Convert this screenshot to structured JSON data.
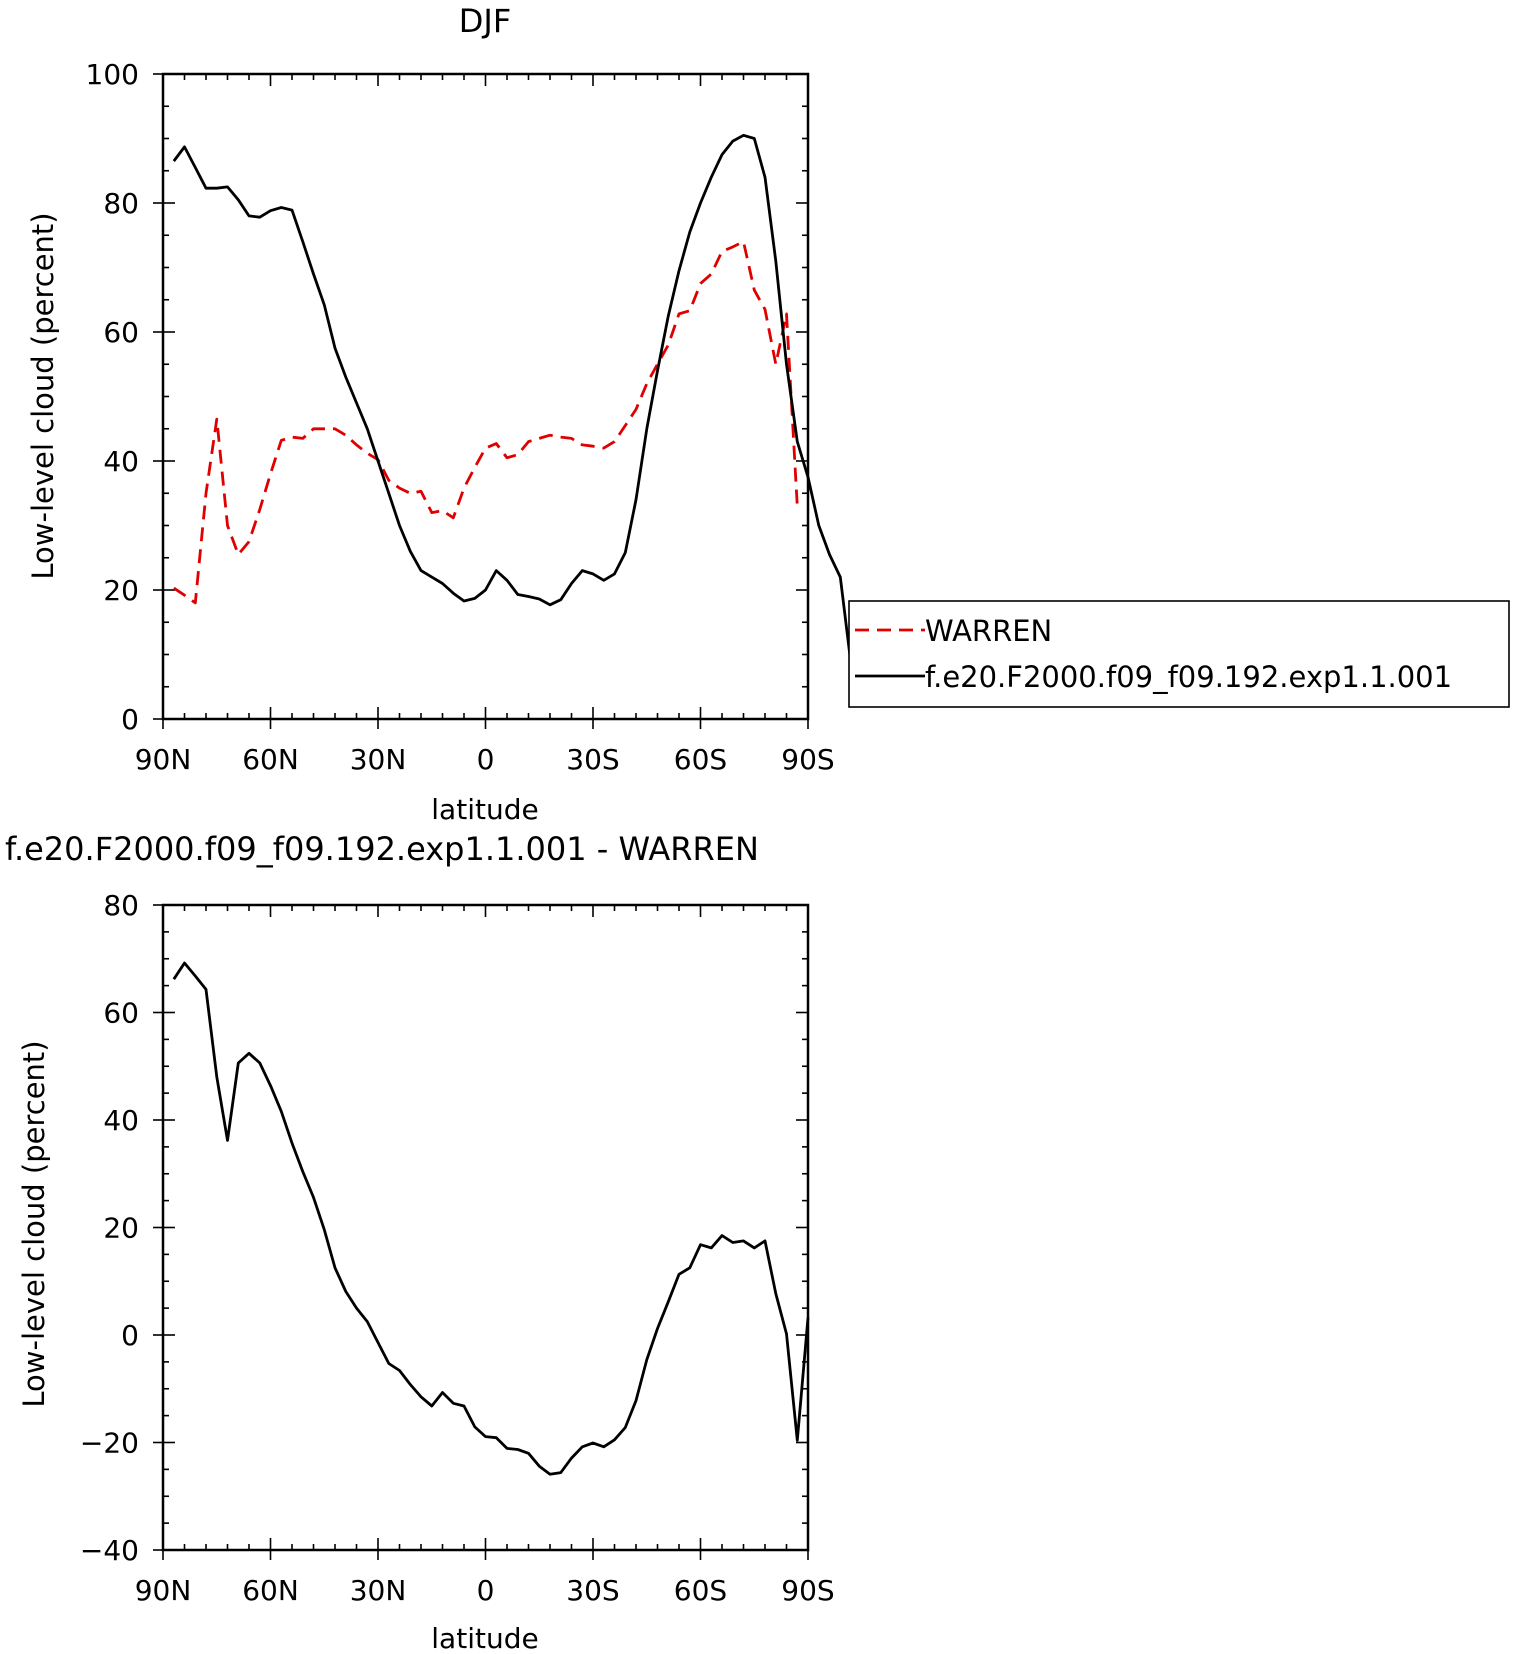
{
  "chart_data": [
    {
      "type": "line",
      "title": "DJF",
      "xlabel": "latitude",
      "ylabel": "Low-level cloud (percent)",
      "xlim": [
        90,
        -90
      ],
      "ylim": [
        0,
        100
      ],
      "x_ticks": [
        90,
        60,
        30,
        0,
        -30,
        -60,
        -90
      ],
      "x_tick_labels": [
        "90N",
        "60N",
        "30N",
        "0",
        "30S",
        "60S",
        "90S"
      ],
      "y_ticks": [
        0,
        20,
        40,
        60,
        80,
        100
      ],
      "y_tick_labels": [
        "0",
        "20",
        "40",
        "60",
        "80",
        "100"
      ],
      "legend_position": "right",
      "series": [
        {
          "name": "WARREN",
          "color": "#e00000",
          "style": "dashed",
          "points": [
            [
              87,
              20.3
            ],
            [
              84,
              19.2
            ],
            [
              81,
              18
            ],
            [
              78,
              35
            ],
            [
              75,
              46.5
            ],
            [
              72,
              30
            ],
            [
              69,
              25.5
            ],
            [
              66,
              27.5
            ],
            [
              63,
              32.5
            ],
            [
              60,
              38
            ],
            [
              57,
              43.2
            ],
            [
              54,
              43.7
            ],
            [
              51,
              43.5
            ],
            [
              48,
              45
            ],
            [
              45,
              45
            ],
            [
              42,
              45
            ],
            [
              39,
              44
            ],
            [
              36,
              42.5
            ],
            [
              33,
              41.2
            ],
            [
              30,
              40.2
            ],
            [
              27,
              37
            ],
            [
              24,
              35.8
            ],
            [
              21,
              35
            ],
            [
              18,
              35.3
            ],
            [
              15,
              32
            ],
            [
              12,
              32.3
            ],
            [
              9,
              31.2
            ],
            [
              6,
              35.8
            ],
            [
              3,
              39
            ],
            [
              0,
              42
            ],
            [
              -3,
              42.7
            ],
            [
              -6,
              40.5
            ],
            [
              -9,
              41
            ],
            [
              -12,
              43
            ],
            [
              -15,
              43.5
            ],
            [
              -18,
              44
            ],
            [
              -21,
              43.7
            ],
            [
              -24,
              43.5
            ],
            [
              -27,
              42.5
            ],
            [
              -30,
              42.3
            ],
            [
              -33,
              42
            ],
            [
              -36,
              43
            ],
            [
              -39,
              45.5
            ],
            [
              -42,
              48
            ],
            [
              -45,
              52
            ],
            [
              -48,
              55
            ],
            [
              -51,
              58
            ],
            [
              -54,
              62.8
            ],
            [
              -57,
              63.3
            ],
            [
              -60,
              67.5
            ],
            [
              -63,
              69
            ],
            [
              -66,
              72.5
            ],
            [
              -69,
              73.2
            ],
            [
              -72,
              74
            ],
            [
              -75,
              66.5
            ],
            [
              -78,
              63.5
            ],
            [
              -81,
              55
            ],
            [
              -84,
              62.8
            ],
            [
              -87,
              33
            ]
          ]
        },
        {
          "name": "f.e20.F2000.f09_f09.192.exp1.1.001",
          "color": "#000000",
          "style": "solid",
          "points": [
            [
              87,
              86.5
            ],
            [
              84,
              88.7
            ],
            [
              81,
              85.5
            ],
            [
              78,
              82.3
            ],
            [
              75,
              82.3
            ],
            [
              72,
              82.5
            ],
            [
              69,
              80.5
            ],
            [
              66,
              78
            ],
            [
              63,
              77.8
            ],
            [
              60,
              78.8
            ],
            [
              57,
              79.3
            ],
            [
              54,
              78.9
            ],
            [
              51,
              74
            ],
            [
              48,
              69
            ],
            [
              45,
              64.2
            ],
            [
              42,
              57.5
            ],
            [
              39,
              53
            ],
            [
              36,
              49
            ],
            [
              33,
              45
            ],
            [
              30,
              40
            ],
            [
              27,
              35
            ],
            [
              24,
              30
            ],
            [
              21,
              26
            ],
            [
              18,
              23
            ],
            [
              15,
              22
            ],
            [
              12,
              21
            ],
            [
              9,
              19.5
            ],
            [
              6,
              18.3
            ],
            [
              3,
              18.7
            ],
            [
              0,
              20
            ],
            [
              -3,
              23
            ],
            [
              -6,
              21.5
            ],
            [
              -9,
              19.3
            ],
            [
              -12,
              19
            ],
            [
              -15,
              18.6
            ],
            [
              -18,
              17.7
            ],
            [
              -21,
              18.5
            ],
            [
              -24,
              21
            ],
            [
              -27,
              23
            ],
            [
              -30,
              22.5
            ],
            [
              -33,
              21.5
            ],
            [
              -36,
              22.5
            ],
            [
              -39,
              25.8
            ],
            [
              -42,
              34
            ],
            [
              -45,
              45
            ],
            [
              -48,
              54
            ],
            [
              -51,
              62.5
            ],
            [
              -54,
              69.5
            ],
            [
              -57,
              75.5
            ],
            [
              -60,
              80
            ],
            [
              -63,
              84
            ],
            [
              -66,
              87.5
            ],
            [
              -69,
              89.6
            ],
            [
              -72,
              90.5
            ],
            [
              -75,
              90
            ],
            [
              -78,
              84
            ],
            [
              -81,
              71
            ],
            [
              -84,
              55
            ],
            [
              -87,
              43
            ],
            [
              -90,
              37.5
            ],
            [
              -93,
              30
            ],
            [
              -96,
              25.5
            ],
            [
              -99,
              22
            ],
            [
              -102,
              8.5
            ]
          ]
        }
      ]
    },
    {
      "type": "line",
      "title": "f.e20.F2000.f09_f09.192.exp1.1.001 - WARREN",
      "xlabel": "latitude",
      "ylabel": "Low-level cloud (percent)",
      "xlim": [
        90,
        -90
      ],
      "ylim": [
        -40,
        80
      ],
      "x_ticks": [
        90,
        60,
        30,
        0,
        -30,
        -60,
        -90
      ],
      "x_tick_labels": [
        "90N",
        "60N",
        "30N",
        "0",
        "30S",
        "60S",
        "90S"
      ],
      "y_ticks": [
        -40,
        -20,
        0,
        20,
        40,
        60,
        80
      ],
      "y_tick_labels": [
        "-40",
        "-20",
        "0",
        "20",
        "40",
        "60",
        "80"
      ],
      "series": [
        {
          "color": "#000000",
          "style": "solid",
          "points": [
            [
              87,
              66.2
            ],
            [
              84,
              69.2
            ],
            [
              81,
              66.8
            ],
            [
              78,
              64.3
            ],
            [
              75,
              48
            ],
            [
              72,
              36.2
            ],
            [
              69,
              50.6
            ],
            [
              66,
              52.4
            ],
            [
              63,
              50.6
            ],
            [
              60,
              46.4
            ],
            [
              57,
              41.6
            ],
            [
              54,
              35.7
            ],
            [
              51,
              30.4
            ],
            [
              48,
              25.6
            ],
            [
              45,
              19.6
            ],
            [
              42,
              12.5
            ],
            [
              39,
              8.1
            ],
            [
              36,
              5
            ],
            [
              33,
              2.5
            ],
            [
              30,
              -1.4
            ],
            [
              27,
              -5.3
            ],
            [
              24,
              -6.6
            ],
            [
              21,
              -9.2
            ],
            [
              18,
              -11.5
            ],
            [
              15,
              -13.2
            ],
            [
              12,
              -10.7
            ],
            [
              9,
              -12.7
            ],
            [
              6,
              -13.2
            ],
            [
              3,
              -17.1
            ],
            [
              0,
              -18.9
            ],
            [
              -3,
              -19.1
            ],
            [
              -6,
              -21.1
            ],
            [
              -9,
              -21.3
            ],
            [
              -12,
              -22
            ],
            [
              -15,
              -24.4
            ],
            [
              -18,
              -25.9
            ],
            [
              -21,
              -25.6
            ],
            [
              -24,
              -22.9
            ],
            [
              -27,
              -20.8
            ],
            [
              -30,
              -20.1
            ],
            [
              -33,
              -20.8
            ],
            [
              -36,
              -19.5
            ],
            [
              -39,
              -17.2
            ],
            [
              -42,
              -12.2
            ],
            [
              -45,
              -4.6
            ],
            [
              -48,
              1.2
            ],
            [
              -51,
              6.2
            ],
            [
              -54,
              11.3
            ],
            [
              -57,
              12.5
            ],
            [
              -60,
              16.8
            ],
            [
              -63,
              16.2
            ],
            [
              -66,
              18.5
            ],
            [
              -69,
              17.2
            ],
            [
              -72,
              17.5
            ],
            [
              -75,
              16.2
            ],
            [
              -78,
              17.5
            ],
            [
              -81,
              7.7
            ],
            [
              -84,
              0.2
            ],
            [
              -87,
              -19.6
            ],
            [
              -90,
              3.2
            ]
          ]
        }
      ]
    }
  ]
}
